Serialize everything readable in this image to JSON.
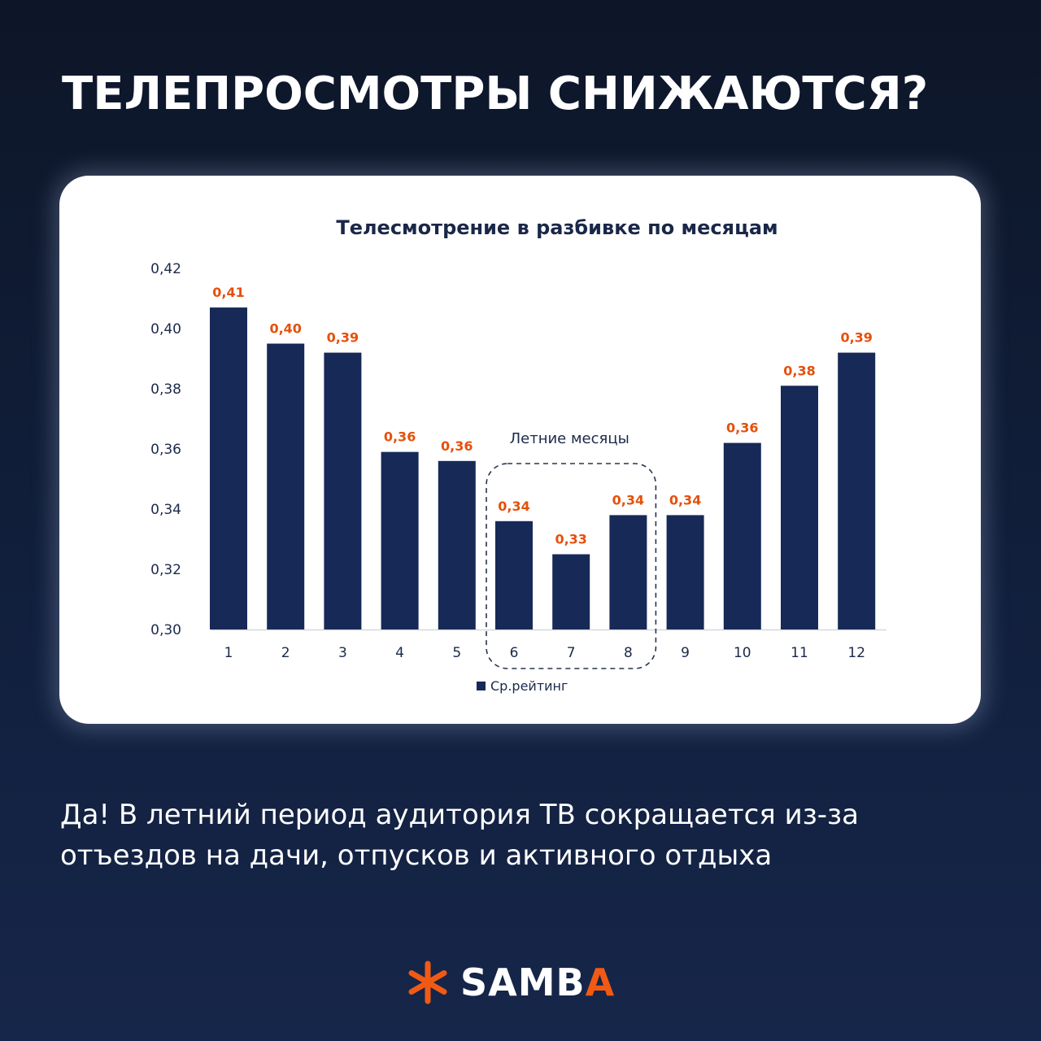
{
  "headline": "ТЕЛЕПРОСМОТРЫ СНИЖАЮТСЯ?",
  "body_lines": [
    "Да! В летний период аудитория ТВ сокращается из-за",
    "отъездов на дачи, отпусков и активного отдыха"
  ],
  "logo": {
    "text_main": "SAMB",
    "text_accent": "A",
    "icon": "asterisk-icon"
  },
  "colors": {
    "bar": "#172957",
    "data_label": "#e5500c",
    "accent": "#f05a14",
    "background": "#111f3c"
  },
  "chart_data": {
    "type": "bar",
    "title": "Телесмотрение в разбивке по месяцам",
    "categories": [
      "1",
      "2",
      "3",
      "4",
      "5",
      "6",
      "7",
      "8",
      "9",
      "10",
      "11",
      "12"
    ],
    "series": [
      {
        "name": "Ср.рейтинг",
        "values": [
          0.407,
          0.395,
          0.392,
          0.359,
          0.356,
          0.336,
          0.325,
          0.338,
          0.338,
          0.362,
          0.381,
          0.392
        ],
        "labels": [
          "0,41",
          "0,40",
          "0,39",
          "0,36",
          "0,36",
          "0,34",
          "0,33",
          "0,34",
          "0,34",
          "0,36",
          "0,38",
          "0,39"
        ]
      }
    ],
    "ylim": [
      0.3,
      0.42
    ],
    "yticks": [
      "0,30",
      "0,32",
      "0,34",
      "0,36",
      "0,38",
      "0,40",
      "0,42"
    ],
    "xlabel": "",
    "ylabel": "",
    "grid": false,
    "legend": "bottom-center",
    "annotation": {
      "text": "Летние месяцы",
      "categories": [
        "6",
        "7",
        "8"
      ]
    }
  }
}
